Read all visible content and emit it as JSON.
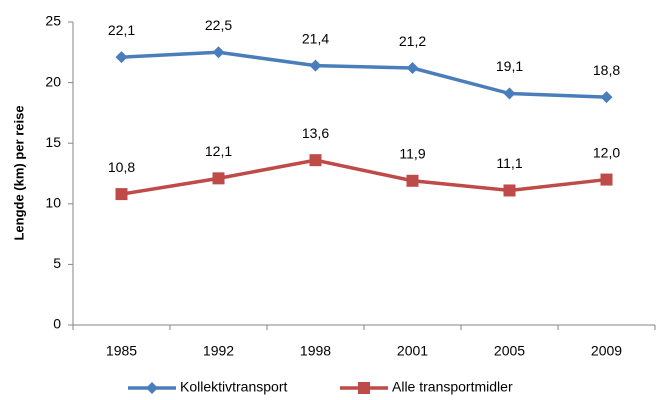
{
  "chart_data": {
    "type": "line",
    "y_label": "Lengde (km) per reise",
    "categories": [
      "1985",
      "1992",
      "1998",
      "2001",
      "2005",
      "2009"
    ],
    "series": [
      {
        "name": "Kollektivtransport",
        "color": "#4a7ebb",
        "marker": "diamond",
        "values": [
          22.1,
          22.5,
          21.4,
          21.2,
          19.1,
          18.8
        ],
        "value_labels": [
          "22,1",
          "22,5",
          "21,4",
          "21,2",
          "19,1",
          "18,8"
        ]
      },
      {
        "name": "Alle transportmidler",
        "color": "#be4b48",
        "marker": "square",
        "values": [
          10.8,
          12.1,
          13.6,
          11.9,
          11.1,
          12.0
        ],
        "value_labels": [
          "10,8",
          "12,1",
          "13,6",
          "11,9",
          "11,1",
          "12,0"
        ]
      }
    ],
    "ylim": [
      0,
      25
    ],
    "yticks": [
      0,
      5,
      10,
      15,
      20,
      25
    ],
    "grid": false,
    "legend": "bottom"
  }
}
